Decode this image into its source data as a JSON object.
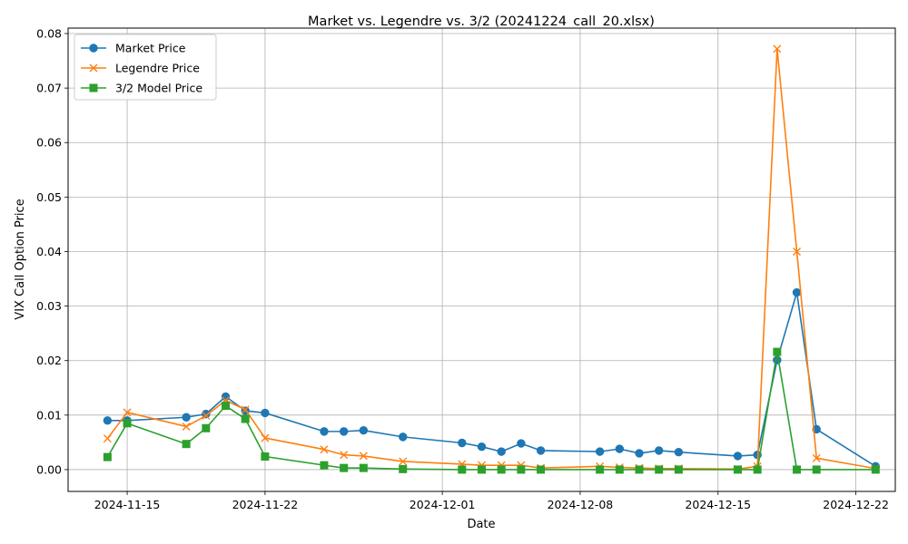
{
  "chart_data": {
    "type": "line",
    "title": "Market vs. Legendre vs. 3/2 (20241224_call_20.xlsx)",
    "xlabel": "Date",
    "ylabel": "VIX Call Option Price",
    "xlim": [
      "2024-11-12",
      "2024-12-24"
    ],
    "ylim": [
      -0.004,
      0.081
    ],
    "x_ticks": [
      "2024-11-15",
      "2024-11-22",
      "2024-12-01",
      "2024-12-08",
      "2024-12-15",
      "2024-12-22"
    ],
    "y_ticks": [
      "0.00",
      "0.01",
      "0.02",
      "0.03",
      "0.04",
      "0.05",
      "0.06",
      "0.07",
      "0.08"
    ],
    "grid": true,
    "legend_position": "top-left",
    "x": [
      "2024-11-14",
      "2024-11-15",
      "2024-11-18",
      "2024-11-19",
      "2024-11-20",
      "2024-11-21",
      "2024-11-22",
      "2024-11-25",
      "2024-11-26",
      "2024-11-27",
      "2024-11-29",
      "2024-12-02",
      "2024-12-03",
      "2024-12-04",
      "2024-12-05",
      "2024-12-06",
      "2024-12-09",
      "2024-12-10",
      "2024-12-11",
      "2024-12-12",
      "2024-12-13",
      "2024-12-16",
      "2024-12-17",
      "2024-12-18",
      "2024-12-19",
      "2024-12-20",
      "2024-12-23"
    ],
    "series": [
      {
        "name": "Market Price",
        "color": "#1f77b4",
        "marker": "circle",
        "values": [
          0.009,
          0.009,
          0.0096,
          0.0102,
          0.0134,
          0.0108,
          0.0104,
          0.007,
          0.007,
          0.0072,
          0.006,
          0.0049,
          0.0042,
          0.0033,
          0.0048,
          0.0035,
          0.0033,
          0.0038,
          0.003,
          0.0035,
          0.0032,
          0.0025,
          0.0027,
          0.0201,
          0.0325,
          0.0074,
          0.0006
        ]
      },
      {
        "name": "Legendre Price",
        "color": "#ff7f0e",
        "marker": "x",
        "values": [
          0.0057,
          0.0105,
          0.0079,
          0.0099,
          0.0127,
          0.011,
          0.0058,
          0.0037,
          0.0027,
          0.0025,
          0.0015,
          0.001,
          0.0008,
          0.0008,
          0.0008,
          0.0003,
          0.0006,
          0.0004,
          0.0003,
          0.0002,
          0.0002,
          0.0001,
          0.0006,
          0.0772,
          0.04,
          0.0021,
          0.0002
        ]
      },
      {
        "name": "3/2 Model Price",
        "color": "#2ca02c",
        "marker": "square",
        "values": [
          0.0023,
          0.0085,
          0.0047,
          0.0076,
          0.0117,
          0.0093,
          0.0024,
          0.0008,
          0.0003,
          0.0003,
          0.0001,
          0.0,
          0.0,
          0.0,
          0.0,
          0.0,
          0.0,
          0.0,
          0.0,
          0.0,
          0.0,
          0.0,
          0.0,
          0.0216,
          0.0,
          0.0,
          0.0
        ]
      }
    ]
  }
}
